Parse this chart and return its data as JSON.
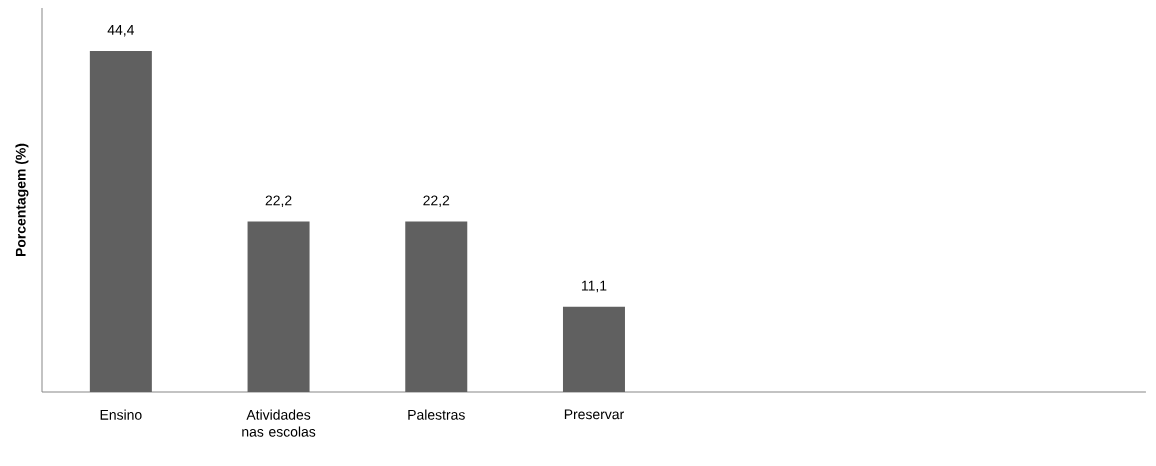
{
  "chart_data": {
    "type": "bar",
    "ylabel": "Porcentagem (%)",
    "categories": [
      "Ensino",
      "Atividades nas escolas",
      "Palestras",
      "Preservar",
      null,
      null,
      null
    ],
    "values": [
      44.4,
      22.2,
      22.2,
      11.1,
      null,
      null,
      null
    ],
    "value_labels": [
      "44,4",
      "22,2",
      "22,2",
      "11,1",
      null,
      null,
      null
    ],
    "color": "#606060",
    "ylim": [
      0,
      50
    ],
    "tick_labels": "x"
  }
}
